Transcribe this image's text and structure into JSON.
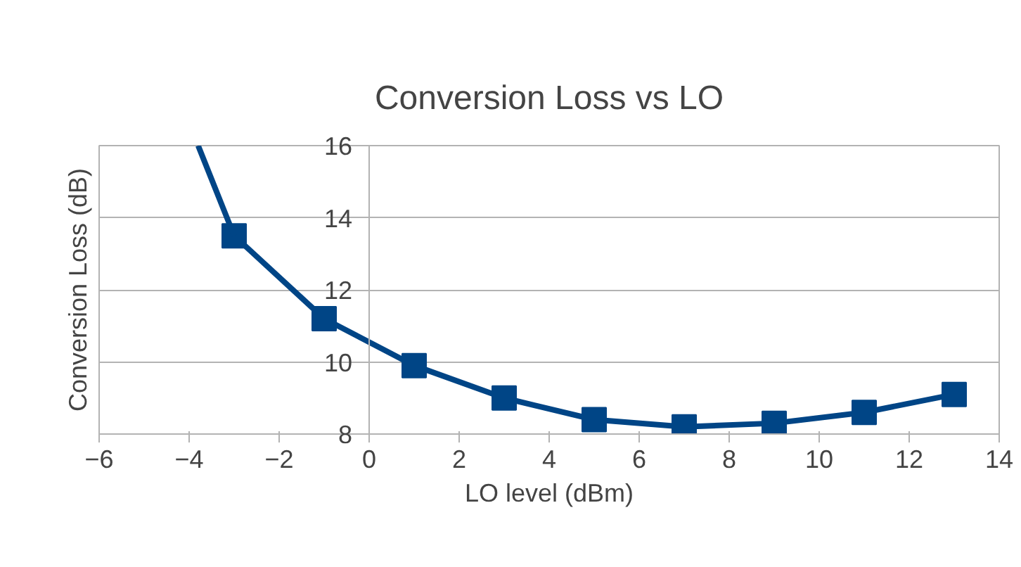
{
  "chart_data": {
    "type": "line",
    "title": "Conversion Loss vs LO",
    "xlabel": "LO level (dBm)",
    "ylabel": "Conversion Loss (dB)",
    "x": [
      -3,
      -1,
      1,
      3,
      5,
      7,
      9,
      11,
      13
    ],
    "series": [
      {
        "color": "#004586",
        "values": [
          13.5,
          11.2,
          9.9,
          9.0,
          8.4,
          8.2,
          8.3,
          8.6,
          9.1
        ],
        "marker": "square"
      },
      {
        "color": "#004586",
        "x": [
          -3.8,
          -3
        ],
        "values": [
          16,
          13.5
        ],
        "marker": "none"
      }
    ],
    "xlim": [
      -6,
      14
    ],
    "xticks": [
      -6,
      -4,
      -2,
      0,
      2,
      4,
      6,
      8,
      10,
      12,
      14
    ],
    "ylim": [
      8,
      16
    ],
    "yticks": [
      8,
      10,
      12,
      14,
      16
    ],
    "grid": "y",
    "line_style": "solid"
  }
}
